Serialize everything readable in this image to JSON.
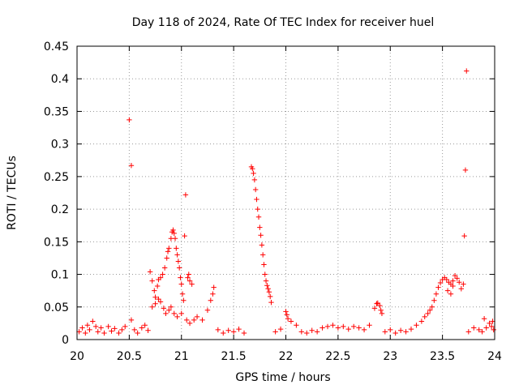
{
  "chart_data": {
    "type": "scatter",
    "title": "Day 118 of 2024, Rate Of TEC Index for receiver huel",
    "xlabel": "GPS time / hours",
    "ylabel": "ROTI / TECUs",
    "xlim": [
      20,
      24
    ],
    "ylim": [
      0,
      0.45
    ],
    "grid": true,
    "marker": "+",
    "color": "#ff0000",
    "xticks": [
      {
        "value": 20,
        "label": "20"
      },
      {
        "value": 20.5,
        "label": "20.5"
      },
      {
        "value": 21,
        "label": "21"
      },
      {
        "value": 21.5,
        "label": "21.5"
      },
      {
        "value": 22,
        "label": "22"
      },
      {
        "value": 22.5,
        "label": "22.5"
      },
      {
        "value": 23,
        "label": "23"
      },
      {
        "value": 23.5,
        "label": "23.5"
      },
      {
        "value": 24,
        "label": "24"
      }
    ],
    "yticks": [
      {
        "value": 0,
        "label": "0"
      },
      {
        "value": 0.05,
        "label": "0.05"
      },
      {
        "value": 0.1,
        "label": "0.1"
      },
      {
        "value": 0.15,
        "label": "0.15"
      },
      {
        "value": 0.2,
        "label": "0.2"
      },
      {
        "value": 0.25,
        "label": "0.25"
      },
      {
        "value": 0.3,
        "label": "0.3"
      },
      {
        "value": 0.35,
        "label": "0.35"
      },
      {
        "value": 0.4,
        "label": "0.4"
      },
      {
        "value": 0.45,
        "label": "0.45"
      }
    ],
    "series": [
      {
        "name": "ROTI",
        "points": [
          [
            20.5,
            0.337
          ],
          [
            20.52,
            0.267
          ],
          [
            20.52,
            0.03
          ],
          [
            20.7,
            0.104
          ],
          [
            20.72,
            0.09
          ],
          [
            20.74,
            0.075
          ],
          [
            20.75,
            0.065
          ],
          [
            20.77,
            0.082
          ],
          [
            20.78,
            0.092
          ],
          [
            20.8,
            0.095
          ],
          [
            20.82,
            0.1
          ],
          [
            20.84,
            0.11
          ],
          [
            20.86,
            0.125
          ],
          [
            20.87,
            0.135
          ],
          [
            20.88,
            0.14
          ],
          [
            20.9,
            0.155
          ],
          [
            20.91,
            0.165
          ],
          [
            20.92,
            0.168
          ],
          [
            20.93,
            0.163
          ],
          [
            20.94,
            0.155
          ],
          [
            20.95,
            0.14
          ],
          [
            20.96,
            0.13
          ],
          [
            20.97,
            0.12
          ],
          [
            20.98,
            0.11
          ],
          [
            20.99,
            0.095
          ],
          [
            21.0,
            0.085
          ],
          [
            21.01,
            0.07
          ],
          [
            21.02,
            0.06
          ],
          [
            21.03,
            0.159
          ],
          [
            21.04,
            0.222
          ],
          [
            20.72,
            0.05
          ],
          [
            20.75,
            0.055
          ],
          [
            20.78,
            0.062
          ],
          [
            20.8,
            0.058
          ],
          [
            20.83,
            0.048
          ],
          [
            20.85,
            0.04
          ],
          [
            20.88,
            0.045
          ],
          [
            20.9,
            0.05
          ],
          [
            20.93,
            0.04
          ],
          [
            20.96,
            0.035
          ],
          [
            21.0,
            0.04
          ],
          [
            21.05,
            0.03
          ],
          [
            21.08,
            0.025
          ],
          [
            21.12,
            0.03
          ],
          [
            21.15,
            0.035
          ],
          [
            21.2,
            0.03
          ],
          [
            21.25,
            0.045
          ],
          [
            21.28,
            0.06
          ],
          [
            21.3,
            0.07
          ],
          [
            21.31,
            0.08
          ],
          [
            21.06,
            0.095
          ],
          [
            21.07,
            0.1
          ],
          [
            21.08,
            0.09
          ],
          [
            21.1,
            0.085
          ],
          [
            21.67,
            0.265
          ],
          [
            21.68,
            0.262
          ],
          [
            21.69,
            0.255
          ],
          [
            21.7,
            0.245
          ],
          [
            21.71,
            0.23
          ],
          [
            21.72,
            0.215
          ],
          [
            21.73,
            0.2
          ],
          [
            21.74,
            0.188
          ],
          [
            21.75,
            0.172
          ],
          [
            21.76,
            0.16
          ],
          [
            21.77,
            0.145
          ],
          [
            21.78,
            0.13
          ],
          [
            21.79,
            0.115
          ],
          [
            21.8,
            0.1
          ],
          [
            21.81,
            0.09
          ],
          [
            21.82,
            0.083
          ],
          [
            21.83,
            0.078
          ],
          [
            21.84,
            0.073
          ],
          [
            21.85,
            0.066
          ],
          [
            21.86,
            0.057
          ],
          [
            22.0,
            0.043
          ],
          [
            22.01,
            0.038
          ],
          [
            22.02,
            0.032
          ],
          [
            22.05,
            0.028
          ],
          [
            22.1,
            0.022
          ],
          [
            22.85,
            0.048
          ],
          [
            22.87,
            0.055
          ],
          [
            22.88,
            0.056
          ],
          [
            22.9,
            0.052
          ],
          [
            22.91,
            0.045
          ],
          [
            22.92,
            0.04
          ],
          [
            23.25,
            0.022
          ],
          [
            23.3,
            0.028
          ],
          [
            23.33,
            0.035
          ],
          [
            23.36,
            0.04
          ],
          [
            23.38,
            0.045
          ],
          [
            23.4,
            0.05
          ],
          [
            23.42,
            0.06
          ],
          [
            23.44,
            0.07
          ],
          [
            23.46,
            0.08
          ],
          [
            23.48,
            0.087
          ],
          [
            23.5,
            0.092
          ],
          [
            23.52,
            0.095
          ],
          [
            23.54,
            0.092
          ],
          [
            23.56,
            0.088
          ],
          [
            23.58,
            0.085
          ],
          [
            23.6,
            0.09
          ],
          [
            23.62,
            0.098
          ],
          [
            23.64,
            0.094
          ],
          [
            23.66,
            0.088
          ],
          [
            23.68,
            0.078
          ],
          [
            23.7,
            0.085
          ],
          [
            23.71,
            0.159
          ],
          [
            23.72,
            0.26
          ],
          [
            23.73,
            0.412
          ],
          [
            23.55,
            0.075
          ],
          [
            23.58,
            0.07
          ],
          [
            23.6,
            0.082
          ],
          [
            23.9,
            0.032
          ],
          [
            23.95,
            0.025
          ],
          [
            23.98,
            0.028
          ],
          [
            20.02,
            0.012
          ],
          [
            20.05,
            0.018
          ],
          [
            20.08,
            0.01
          ],
          [
            20.1,
            0.022
          ],
          [
            20.12,
            0.015
          ],
          [
            20.15,
            0.028
          ],
          [
            20.18,
            0.02
          ],
          [
            20.2,
            0.012
          ],
          [
            20.23,
            0.018
          ],
          [
            20.26,
            0.01
          ],
          [
            20.3,
            0.02
          ],
          [
            20.33,
            0.013
          ],
          [
            20.36,
            0.017
          ],
          [
            20.4,
            0.01
          ],
          [
            20.43,
            0.015
          ],
          [
            20.46,
            0.02
          ],
          [
            20.55,
            0.015
          ],
          [
            20.58,
            0.01
          ],
          [
            20.62,
            0.018
          ],
          [
            20.65,
            0.022
          ],
          [
            20.68,
            0.014
          ],
          [
            21.35,
            0.015
          ],
          [
            21.4,
            0.01
          ],
          [
            21.45,
            0.014
          ],
          [
            21.5,
            0.012
          ],
          [
            21.55,
            0.016
          ],
          [
            21.6,
            0.01
          ],
          [
            21.9,
            0.012
          ],
          [
            21.95,
            0.016
          ],
          [
            22.15,
            0.012
          ],
          [
            22.2,
            0.01
          ],
          [
            22.25,
            0.014
          ],
          [
            22.3,
            0.012
          ],
          [
            22.35,
            0.018
          ],
          [
            22.4,
            0.02
          ],
          [
            22.45,
            0.022
          ],
          [
            22.5,
            0.018
          ],
          [
            22.55,
            0.02
          ],
          [
            22.6,
            0.016
          ],
          [
            22.65,
            0.02
          ],
          [
            22.7,
            0.018
          ],
          [
            22.75,
            0.015
          ],
          [
            22.8,
            0.022
          ],
          [
            22.95,
            0.012
          ],
          [
            23.0,
            0.015
          ],
          [
            23.05,
            0.01
          ],
          [
            23.1,
            0.014
          ],
          [
            23.15,
            0.012
          ],
          [
            23.2,
            0.016
          ],
          [
            23.75,
            0.012
          ],
          [
            23.8,
            0.018
          ],
          [
            23.85,
            0.015
          ],
          [
            23.88,
            0.012
          ],
          [
            23.92,
            0.018
          ],
          [
            23.97,
            0.02
          ],
          [
            23.99,
            0.015
          ]
        ]
      }
    ]
  }
}
